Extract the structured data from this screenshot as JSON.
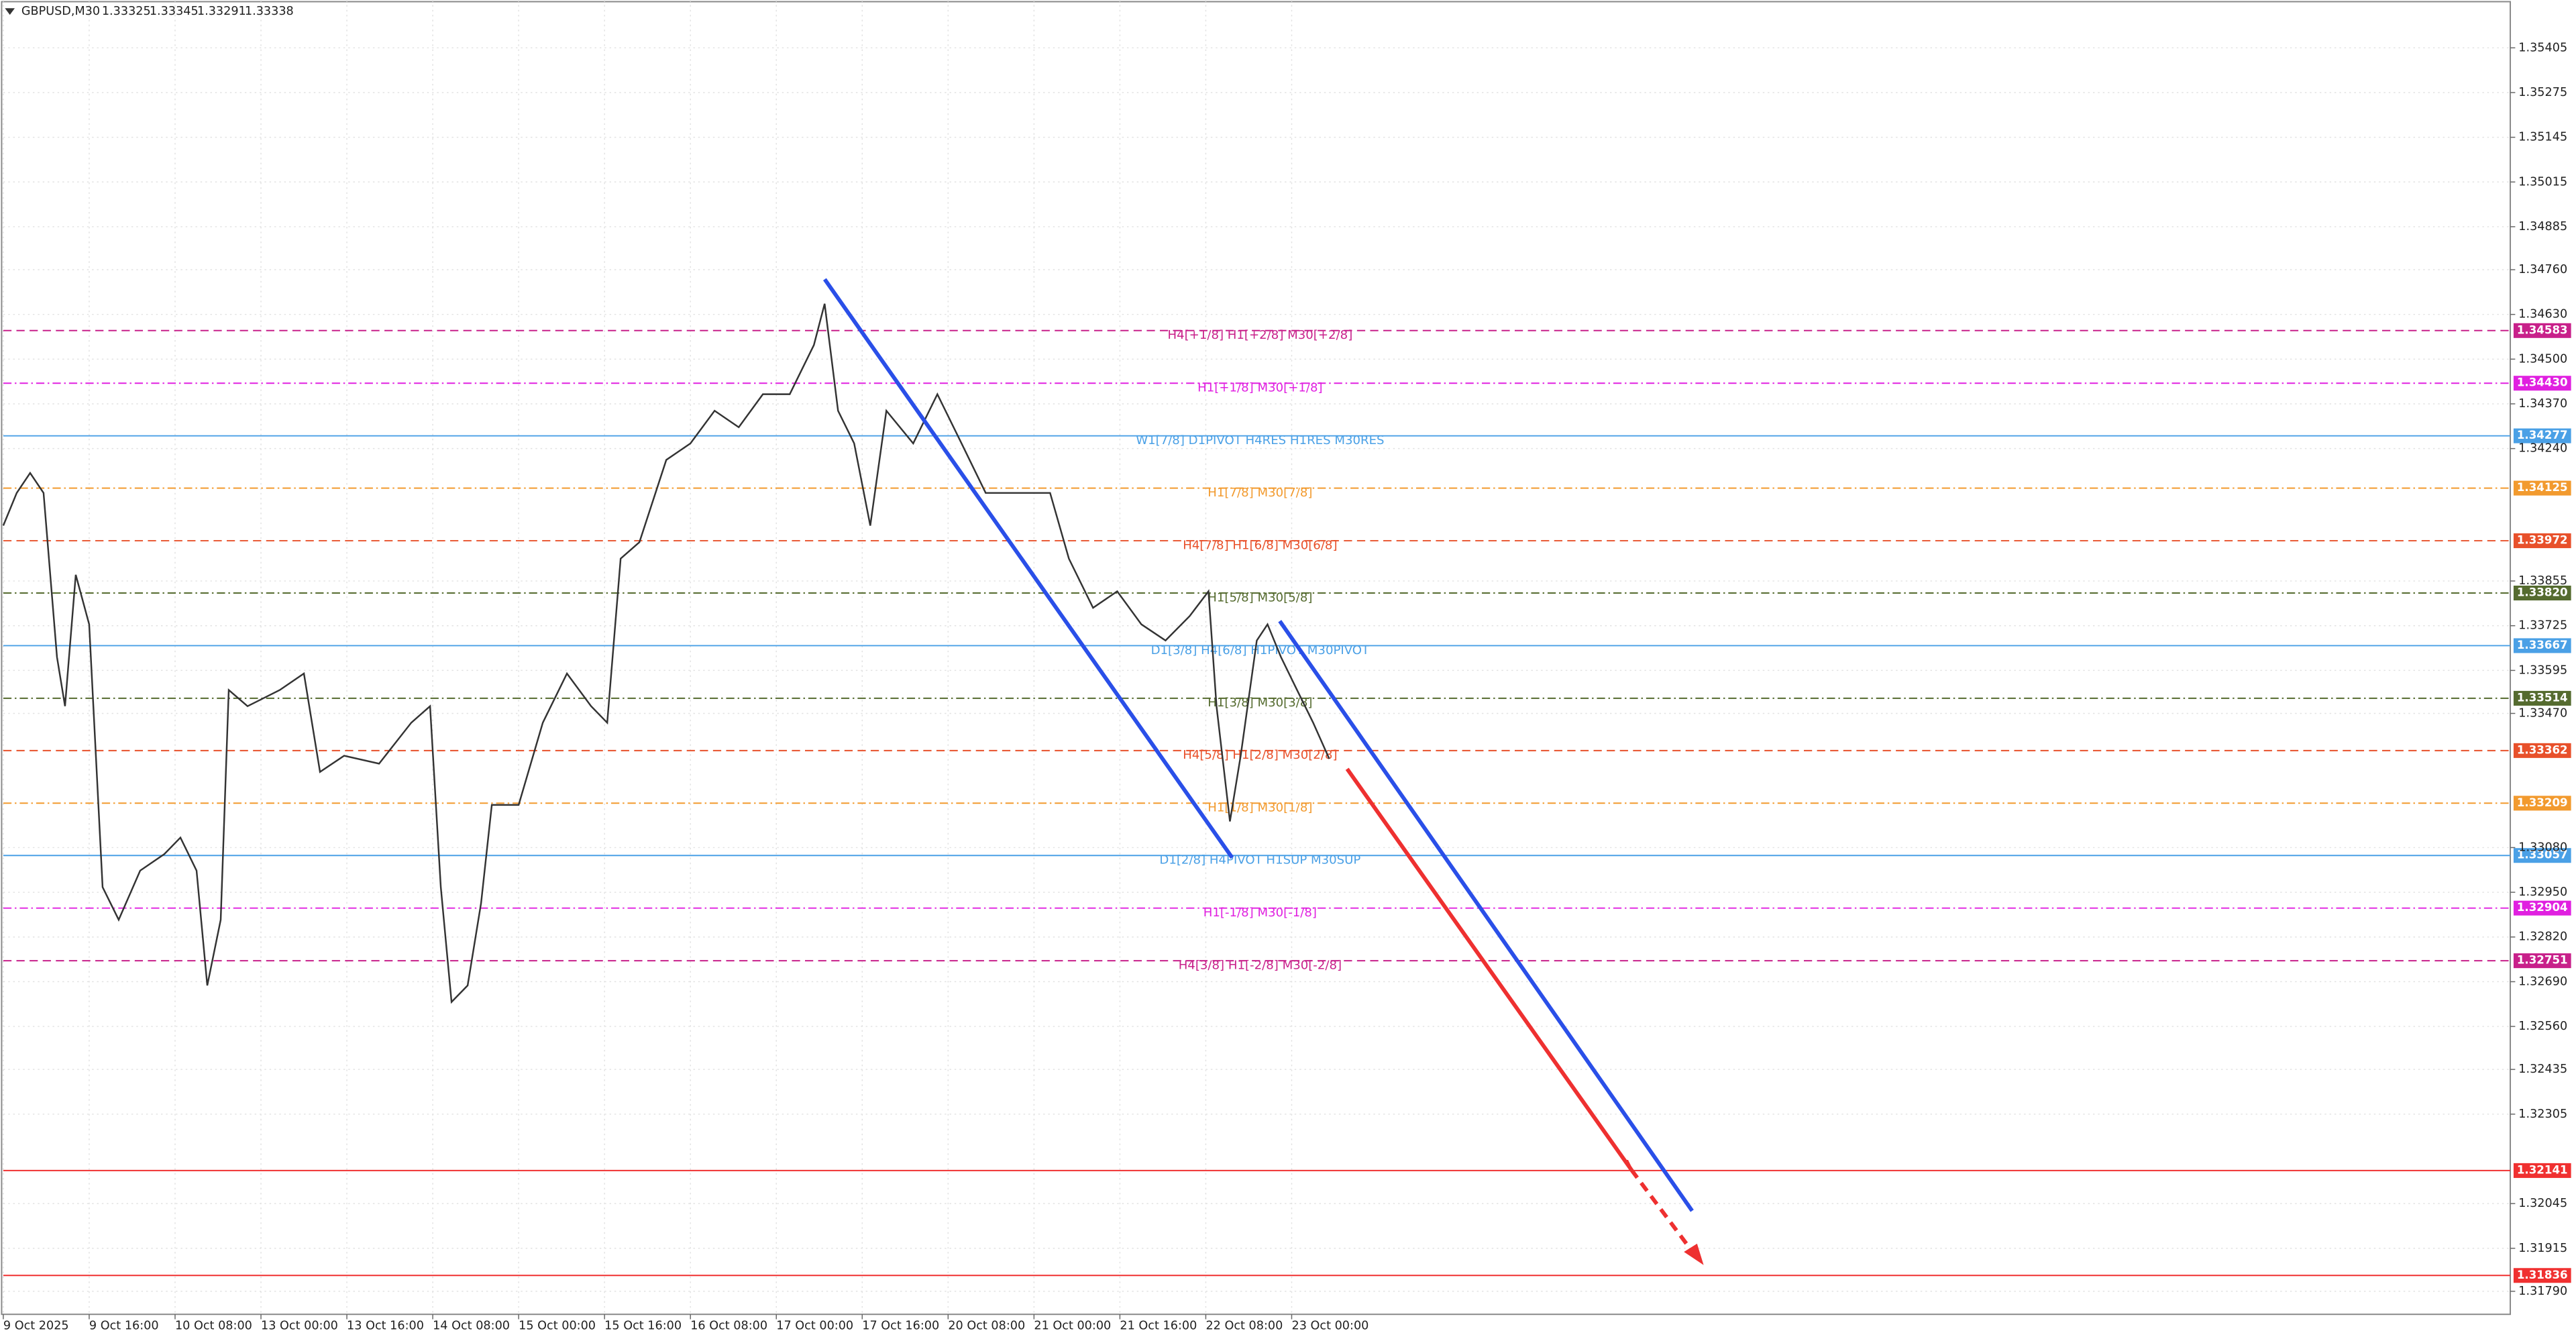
{
  "chart_data": {
    "type": "line",
    "title": "GBPUSD,M30",
    "ohlc": [
      1.33325,
      1.33345,
      1.33291,
      1.33338
    ],
    "x": [
      0,
      5,
      10,
      15,
      20,
      23,
      27,
      32,
      37,
      43,
      51,
      60,
      66,
      72,
      76,
      81,
      84,
      91,
      103,
      112,
      118,
      127,
      140,
      152,
      159,
      163,
      167,
      173,
      178,
      182,
      192,
      201,
      210,
      219,
      225,
      230,
      237,
      247,
      256,
      265,
      274,
      283,
      293,
      302,
      306,
      311,
      317,
      323,
      329,
      339,
      348,
      357,
      366,
      378,
      390,
      397,
      406,
      415,
      424,
      433,
      442,
      449,
      452,
      457,
      461,
      467,
      471,
      476,
      482,
      488,
      494
    ],
    "values": [
      1.34016,
      1.34111,
      1.34169,
      1.34111,
      1.33634,
      1.33491,
      1.33873,
      1.33729,
      1.32965,
      1.3287,
      1.33013,
      1.33061,
      1.33109,
      1.33013,
      1.32679,
      1.3287,
      1.33538,
      1.33491,
      1.33538,
      1.33586,
      1.333,
      1.33347,
      1.33324,
      1.33443,
      1.33491,
      1.32965,
      1.32631,
      1.32679,
      1.32918,
      1.33204,
      1.33204,
      1.33443,
      1.33586,
      1.33491,
      1.33443,
      1.3392,
      1.33968,
      1.34207,
      1.34255,
      1.3435,
      1.34302,
      1.34398,
      1.34398,
      1.34541,
      1.34661,
      1.3435,
      1.34255,
      1.34016,
      1.3435,
      1.34255,
      1.34398,
      1.34255,
      1.34111,
      1.34111,
      1.34111,
      1.3392,
      1.33777,
      1.33825,
      1.33729,
      1.33682,
      1.33753,
      1.33825,
      1.33491,
      1.33156,
      1.33347,
      1.33682,
      1.33729,
      1.33634,
      1.33538,
      1.33443,
      1.33338
    ],
    "color": "#333333",
    "xlim": [
      0,
      934
    ],
    "xticks": [
      {
        "value": 0,
        "label": "9 Oct 2025"
      },
      {
        "value": 32,
        "label": "9 Oct 16:00"
      },
      {
        "value": 64,
        "label": "10 Oct 08:00"
      },
      {
        "value": 96,
        "label": "13 Oct 00:00"
      },
      {
        "value": 128,
        "label": "13 Oct 16:00"
      },
      {
        "value": 160,
        "label": "14 Oct 08:00"
      },
      {
        "value": 192,
        "label": "15 Oct 00:00"
      },
      {
        "value": 224,
        "label": "15 Oct 16:00"
      },
      {
        "value": 256,
        "label": "16 Oct 08:00"
      },
      {
        "value": 288,
        "label": "17 Oct 00:00"
      },
      {
        "value": 320,
        "label": "17 Oct 16:00"
      },
      {
        "value": 352,
        "label": "20 Oct 08:00"
      },
      {
        "value": 384,
        "label": "21 Oct 00:00"
      },
      {
        "value": 416,
        "label": "21 Oct 16:00"
      },
      {
        "value": 448,
        "label": "22 Oct 08:00"
      },
      {
        "value": 480,
        "label": "23 Oct 00:00"
      }
    ],
    "ylim": [
      1.31723,
      1.35544
    ],
    "yticks": [
      {
        "value": 1.35405,
        "label": "1.35405"
      },
      {
        "value": 1.35275,
        "label": "1.35275"
      },
      {
        "value": 1.35145,
        "label": "1.35145"
      },
      {
        "value": 1.35015,
        "label": "1.35015"
      },
      {
        "value": 1.34885,
        "label": "1.34885"
      },
      {
        "value": 1.3476,
        "label": "1.34760"
      },
      {
        "value": 1.3463,
        "label": "1.34630"
      },
      {
        "value": 1.345,
        "label": "1.34500"
      },
      {
        "value": 1.3437,
        "label": "1.34370"
      },
      {
        "value": 1.3424,
        "label": "1.34240"
      },
      {
        "value": 1.33855,
        "label": "1.33855"
      },
      {
        "value": 1.33725,
        "label": "1.33725"
      },
      {
        "value": 1.33595,
        "label": "1.33595"
      },
      {
        "value": 1.3347,
        "label": "1.33470"
      },
      {
        "value": 1.3308,
        "label": "1.33080"
      },
      {
        "value": 1.3295,
        "label": "1.32950"
      },
      {
        "value": 1.3282,
        "label": "1.32820"
      },
      {
        "value": 1.3269,
        "label": "1.32690"
      },
      {
        "value": 1.3256,
        "label": "1.32560"
      },
      {
        "value": 1.32435,
        "label": "1.32435"
      },
      {
        "value": 1.32305,
        "label": "1.32305"
      },
      {
        "value": 1.32045,
        "label": "1.32045"
      },
      {
        "value": 1.31915,
        "label": "1.31915"
      },
      {
        "value": 1.3179,
        "label": "1.31790"
      }
    ],
    "grid": true,
    "levels": [
      {
        "value": 1.34583,
        "label": "1.34583",
        "text": "H4[+1/8] H1[+2/8] M30[+2/8]",
        "color": "#c8208a",
        "style": "dash"
      },
      {
        "value": 1.3443,
        "label": "1.34430",
        "text": "H1[+1/8] M30[+1/8]",
        "color": "#e020e0",
        "style": "dashdot"
      },
      {
        "value": 1.34277,
        "label": "1.34277",
        "text": "W1[7/8] D1PIVOT H4RES H1RES M30RES",
        "color": "#4aa0e6",
        "style": "solid"
      },
      {
        "value": 1.34125,
        "label": "1.34125",
        "text": "H1[7/8] M30[7/8]",
        "color": "#f29a2e",
        "style": "dashdot"
      },
      {
        "value": 1.33972,
        "label": "1.33972",
        "text": "H4[7/8] H1[6/8] M30[6/8]",
        "color": "#e8502a",
        "style": "dash"
      },
      {
        "value": 1.3382,
        "label": "1.33820",
        "text": "H1[5/8] M30[5/8]",
        "color": "#556b2f",
        "style": "dashdot"
      },
      {
        "value": 1.33667,
        "label": "1.33667",
        "text": "D1[3/8] H4[6/8] H1PIVOT M30PIVOT",
        "color": "#4aa0e6",
        "style": "solid"
      },
      {
        "value": 1.33514,
        "label": "1.33514",
        "text": "H1[3/8] M30[3/8]",
        "color": "#556b2f",
        "style": "dashdot"
      },
      {
        "value": 1.33362,
        "label": "1.33362",
        "text": "H4[5/8] H1[2/8] M30[2/8]",
        "color": "#e8502a",
        "style": "dash"
      },
      {
        "value": 1.33209,
        "label": "1.33209",
        "text": "H1[1/8] M30[1/8]",
        "color": "#f29a2e",
        "style": "dashdot"
      },
      {
        "value": 1.33057,
        "label": "1.33057",
        "text": "D1[2/8] H4PIVOT H1SUP M30SUP",
        "color": "#4aa0e6",
        "style": "solid"
      },
      {
        "value": 1.32904,
        "label": "1.32904",
        "text": "H1[-1/8] M30[-1/8]",
        "color": "#e020e0",
        "style": "dashdot"
      },
      {
        "value": 1.32751,
        "label": "1.32751",
        "text": "H4[3/8] H1[-2/8] M30[-2/8]",
        "color": "#c8208a",
        "style": "dash"
      },
      {
        "value": 1.32141,
        "label": "1.32141",
        "color": "#f03030",
        "style": "solid"
      },
      {
        "value": 1.31836,
        "label": "1.31836",
        "color": "#f03030",
        "style": "solid"
      }
    ]
  }
}
